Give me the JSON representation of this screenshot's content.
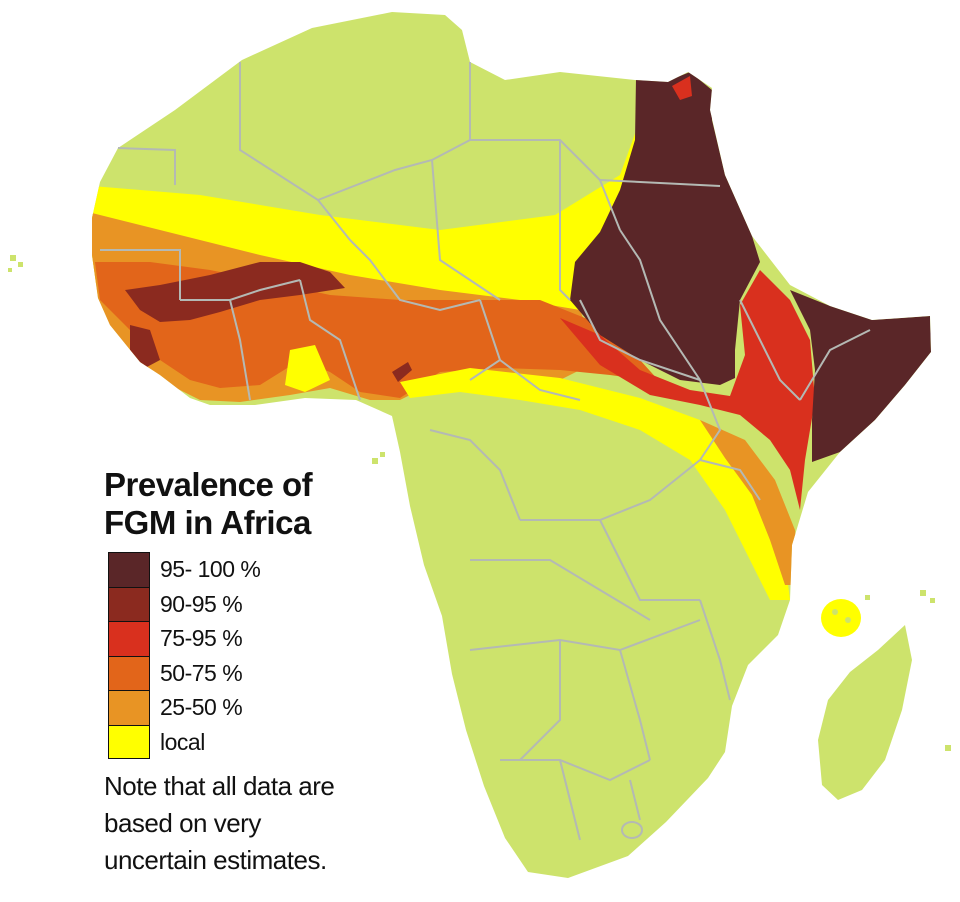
{
  "legend": {
    "title_line1": "Prevalence of",
    "title_line2": "FGM in Africa",
    "items": [
      {
        "label": "95- 100 %",
        "color": "#5a2628"
      },
      {
        "label": "90-95 %",
        "color": "#8b2a1f"
      },
      {
        "label": "75-95 %",
        "color": "#d9301e"
      },
      {
        "label": "50-75 %",
        "color": "#e2651a"
      },
      {
        "label": "25-50 %",
        "color": "#e89424"
      },
      {
        "label": "local",
        "color": "#ffff00"
      }
    ]
  },
  "note": {
    "line1": "Note that all data are",
    "line2": "based on very",
    "line3": "uncertain estimates."
  },
  "colors": {
    "land": "#cde36c",
    "border": "#b4b9b4",
    "background": "#ffffff"
  }
}
